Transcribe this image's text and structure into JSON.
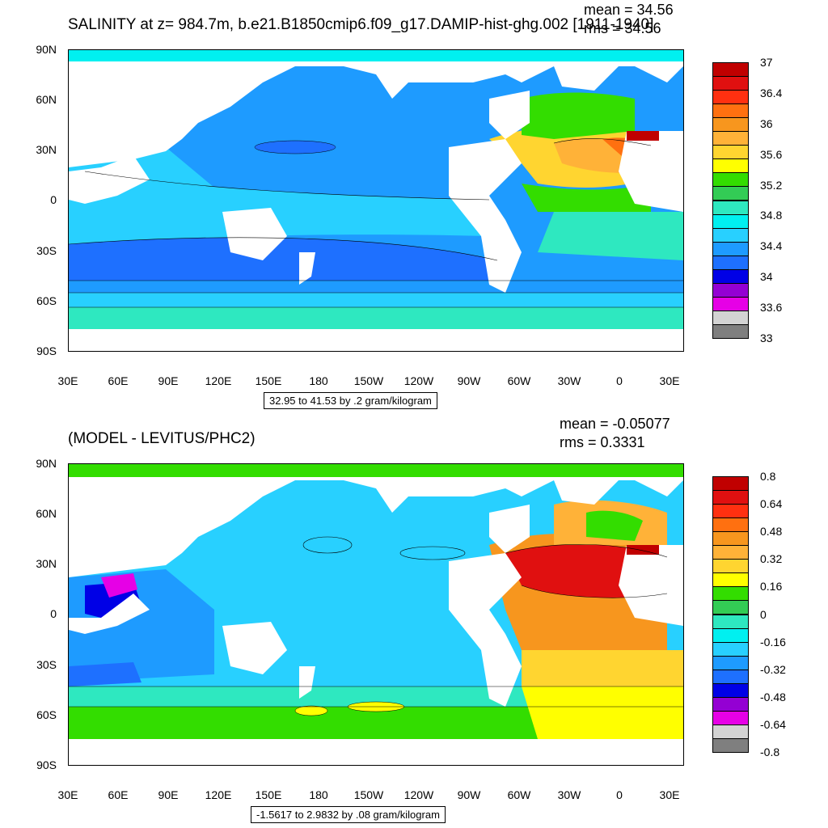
{
  "top": {
    "title": "SALINITY at z= 984.7m, b.e21.B1850cmip6.f09_g17.DAMIP-hist-ghg.002 [1911-1940]",
    "mean_text": "mean = 34.56",
    "rms_text": "rms = 34.56",
    "range_text": "32.95 to 41.53 by .2 gram/kilogram",
    "colorbar": {
      "colors": [
        "#c00000",
        "#e01010",
        "#ff3010",
        "#ff7010",
        "#f7961e",
        "#ffb238",
        "#ffd530",
        "#ffff00",
        "#33dd00",
        "#33cc55",
        "#2ee8c0",
        "#00f0f0",
        "#28d0ff",
        "#1e9bff",
        "#1e70ff",
        "#0000e6",
        "#9400d3",
        "#e600e6",
        "#d3d3d3",
        "#7f7f7f"
      ],
      "labels": [
        "37",
        "36.4",
        "36",
        "35.6",
        "35.2",
        "34.8",
        "34.4",
        "34",
        "33.6",
        "33"
      ]
    }
  },
  "bottom": {
    "title": "(MODEL - LEVITUS/PHC2)",
    "mean_text": "mean = -0.05077",
    "rms_text": "rms = 0.3331",
    "range_text": "-1.5617 to 2.9832 by .08 gram/kilogram",
    "colorbar": {
      "colors": [
        "#c00000",
        "#e01010",
        "#ff3010",
        "#ff7010",
        "#f7961e",
        "#ffb238",
        "#ffd530",
        "#ffff00",
        "#33dd00",
        "#33cc55",
        "#2ee8c0",
        "#00f0f0",
        "#28d0ff",
        "#1e9bff",
        "#1e70ff",
        "#0000e6",
        "#9400d3",
        "#e600e6",
        "#d3d3d3",
        "#7f7f7f"
      ],
      "labels": [
        "0.8",
        "0.64",
        "0.48",
        "0.32",
        "0.16",
        "0",
        "-0.16",
        "-0.32",
        "-0.48",
        "-0.64",
        "-0.8"
      ]
    }
  },
  "axes": {
    "lat_labels": [
      "90N",
      "60N",
      "30N",
      "0",
      "30S",
      "60S",
      "90S"
    ],
    "lon_labels": [
      "30E",
      "60E",
      "90E",
      "120E",
      "150E",
      "180",
      "150W",
      "120W",
      "90W",
      "60W",
      "30W",
      "0",
      "30E"
    ]
  },
  "colors": {
    "land": "#ffffff",
    "top_ocean_main": "#1e9bff",
    "bottom_ocean_main": "#28d0ff"
  }
}
